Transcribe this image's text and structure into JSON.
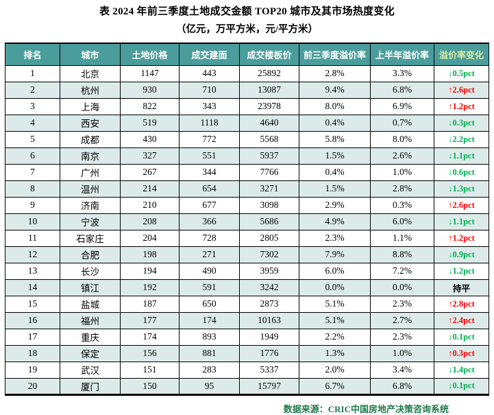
{
  "colors": {
    "header_bg": "#4a9d9b",
    "header_text": "#ffffff",
    "change_header_text": "#d8eaa4",
    "row_alt_bg": "#dcebea",
    "up_red": "#ff0000",
    "down_green": "#00b050",
    "flat_black": "#000000",
    "source_text": "#1f7a4a"
  },
  "chart_data": {
    "type": "table",
    "title": "表 2024 年前三季度土地成交金额 TOP20 城市及其市场热度变化",
    "unit_note": "（亿元，万平方米，元/平方米）",
    "columns": [
      "排名",
      "城市",
      "土地价格",
      "成交建面",
      "成交楼板价",
      "前三季度溢价率",
      "上半年溢价率",
      "溢价率变化"
    ],
    "rows": [
      {
        "rank": "1",
        "city": "北京",
        "land_price": "1147",
        "built_area": "443",
        "floor_price": "25892",
        "q3_premium": "2.8%",
        "h1_premium": "3.3%",
        "change": {
          "text": "↓0.5pct",
          "trend": "down"
        }
      },
      {
        "rank": "2",
        "city": "杭州",
        "land_price": "930",
        "built_area": "710",
        "floor_price": "13087",
        "q3_premium": "9.4%",
        "h1_premium": "6.8%",
        "change": {
          "text": "↑2.6pct",
          "trend": "up"
        }
      },
      {
        "rank": "3",
        "city": "上海",
        "land_price": "822",
        "built_area": "343",
        "floor_price": "23978",
        "q3_premium": "8.0%",
        "h1_premium": "6.9%",
        "change": {
          "text": "↑1.2pct",
          "trend": "up"
        }
      },
      {
        "rank": "4",
        "city": "西安",
        "land_price": "519",
        "built_area": "1118",
        "floor_price": "4640",
        "q3_premium": "0.4%",
        "h1_premium": "0.7%",
        "change": {
          "text": "↓0.3pct",
          "trend": "down"
        }
      },
      {
        "rank": "5",
        "city": "成都",
        "land_price": "430",
        "built_area": "772",
        "floor_price": "5568",
        "q3_premium": "5.8%",
        "h1_premium": "8.0%",
        "change": {
          "text": "↓2.2pct",
          "trend": "down"
        }
      },
      {
        "rank": "6",
        "city": "南京",
        "land_price": "327",
        "built_area": "551",
        "floor_price": "5937",
        "q3_premium": "1.5%",
        "h1_premium": "2.6%",
        "change": {
          "text": "↓1.1pct",
          "trend": "down"
        }
      },
      {
        "rank": "7",
        "city": "广州",
        "land_price": "267",
        "built_area": "344",
        "floor_price": "7766",
        "q3_premium": "0.4%",
        "h1_premium": "1.0%",
        "change": {
          "text": "↓0.6pct",
          "trend": "down"
        }
      },
      {
        "rank": "8",
        "city": "温州",
        "land_price": "214",
        "built_area": "654",
        "floor_price": "3271",
        "q3_premium": "1.5%",
        "h1_premium": "2.8%",
        "change": {
          "text": "↓1.3pct",
          "trend": "down"
        }
      },
      {
        "rank": "9",
        "city": "济南",
        "land_price": "210",
        "built_area": "677",
        "floor_price": "3098",
        "q3_premium": "2.9%",
        "h1_premium": "0.3%",
        "change": {
          "text": "↑2.6pct",
          "trend": "up"
        }
      },
      {
        "rank": "10",
        "city": "宁波",
        "land_price": "208",
        "built_area": "366",
        "floor_price": "5686",
        "q3_premium": "4.9%",
        "h1_premium": "6.0%",
        "change": {
          "text": "↓1.1pct",
          "trend": "down"
        }
      },
      {
        "rank": "11",
        "city": "石家庄",
        "land_price": "204",
        "built_area": "728",
        "floor_price": "2805",
        "q3_premium": "2.3%",
        "h1_premium": "1.1%",
        "change": {
          "text": "↑1.2pct",
          "trend": "up"
        }
      },
      {
        "rank": "12",
        "city": "合肥",
        "land_price": "198",
        "built_area": "271",
        "floor_price": "7302",
        "q3_premium": "7.9%",
        "h1_premium": "8.8%",
        "change": {
          "text": "↓0.9pct",
          "trend": "down"
        }
      },
      {
        "rank": "13",
        "city": "长沙",
        "land_price": "194",
        "built_area": "490",
        "floor_price": "3959",
        "q3_premium": "6.0%",
        "h1_premium": "7.2%",
        "change": {
          "text": "↓1.2pct",
          "trend": "down"
        }
      },
      {
        "rank": "14",
        "city": "镇江",
        "land_price": "192",
        "built_area": "591",
        "floor_price": "3242",
        "q3_premium": "0.0%",
        "h1_premium": "0.0%",
        "change": {
          "text": "持平",
          "trend": "flat"
        }
      },
      {
        "rank": "15",
        "city": "盐城",
        "land_price": "187",
        "built_area": "650",
        "floor_price": "2873",
        "q3_premium": "5.1%",
        "h1_premium": "2.3%",
        "change": {
          "text": "↑2.8pct",
          "trend": "up"
        }
      },
      {
        "rank": "16",
        "city": "福州",
        "land_price": "177",
        "built_area": "174",
        "floor_price": "10163",
        "q3_premium": "5.1%",
        "h1_premium": "2.7%",
        "change": {
          "text": "↑2.4pct",
          "trend": "up"
        }
      },
      {
        "rank": "17",
        "city": "重庆",
        "land_price": "174",
        "built_area": "893",
        "floor_price": "1949",
        "q3_premium": "2.2%",
        "h1_premium": "2.3%",
        "change": {
          "text": "↓0.1pct",
          "trend": "down"
        }
      },
      {
        "rank": "18",
        "city": "保定",
        "land_price": "156",
        "built_area": "881",
        "floor_price": "1776",
        "q3_premium": "1.3%",
        "h1_premium": "1.0%",
        "change": {
          "text": "↑0.3pct",
          "trend": "up"
        }
      },
      {
        "rank": "19",
        "city": "武汉",
        "land_price": "151",
        "built_area": "283",
        "floor_price": "5337",
        "q3_premium": "2.0%",
        "h1_premium": "3.4%",
        "change": {
          "text": "↓1.4pct",
          "trend": "down"
        }
      },
      {
        "rank": "20",
        "city": "厦门",
        "land_price": "150",
        "built_area": "95",
        "floor_price": "15797",
        "q3_premium": "6.7%",
        "h1_premium": "6.8%",
        "change": {
          "text": "↓0.1pct",
          "trend": "down"
        }
      }
    ],
    "source": "数据来源：CRIC中国房地产决策咨询系统"
  }
}
